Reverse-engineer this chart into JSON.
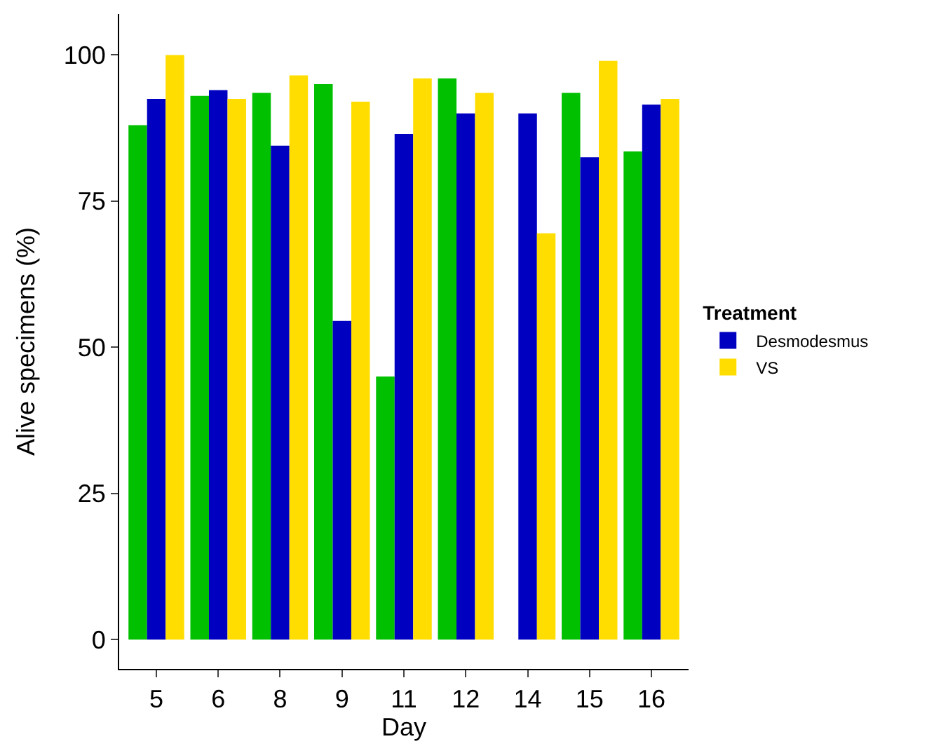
{
  "chart_data": {
    "type": "bar",
    "xlabel": "Day",
    "ylabel": "Alive specimens (%)",
    "legend_title": "Treatment",
    "legend": "right",
    "categories": [
      "5",
      "6",
      "8",
      "9",
      "11",
      "12",
      "14",
      "15",
      "16"
    ],
    "ylim": [
      -5,
      107
    ],
    "yticks": [
      0,
      25,
      50,
      75,
      100
    ],
    "series": [
      {
        "color": "#00c000",
        "values": [
          88,
          93,
          93.5,
          95,
          45,
          96,
          null,
          93.5,
          83.5
        ]
      },
      {
        "name": "Desmodesmus",
        "color": "#0000c0",
        "values": [
          92.5,
          94,
          84.5,
          54.5,
          86.5,
          90,
          90,
          82.5,
          91.5
        ]
      },
      {
        "name": "VS",
        "color": "#ffdd00",
        "values": [
          100,
          92.5,
          96.5,
          92,
          96,
          93.5,
          69.5,
          99,
          92.5
        ]
      }
    ]
  }
}
